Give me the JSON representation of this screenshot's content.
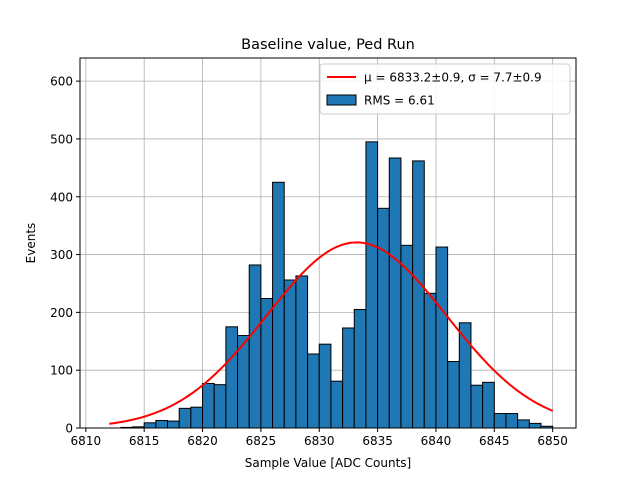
{
  "chart_data": {
    "type": "bar",
    "title": "Baseline value, Ped Run",
    "xlabel": "Sample Value [ADC Counts]",
    "ylabel": "Events",
    "xlim": [
      6809.5,
      6852.0
    ],
    "ylim": [
      0,
      640
    ],
    "grid": true,
    "x_ticks": [
      6810,
      6815,
      6820,
      6825,
      6830,
      6835,
      6840,
      6845,
      6850
    ],
    "y_ticks": [
      0,
      100,
      200,
      300,
      400,
      500,
      600
    ],
    "bin_width": 1,
    "bin_starts": [
      6813,
      6814,
      6815,
      6816,
      6817,
      6818,
      6819,
      6820,
      6821,
      6822,
      6823,
      6824,
      6825,
      6826,
      6827,
      6828,
      6829,
      6830,
      6831,
      6832,
      6833,
      6834,
      6835,
      6836,
      6837,
      6838,
      6839,
      6840,
      6841,
      6842,
      6843,
      6844,
      6845,
      6846,
      6847,
      6848,
      6849
    ],
    "counts": [
      1,
      2,
      9,
      13,
      12,
      34,
      36,
      77,
      75,
      175,
      160,
      282,
      224,
      425,
      256,
      263,
      128,
      145,
      81,
      173,
      205,
      495,
      380,
      467,
      316,
      462,
      233,
      313,
      115,
      182,
      74,
      79,
      25,
      25,
      14,
      8,
      3
    ],
    "histogram_color": "#1f77b4",
    "fit": {
      "type": "gaussian",
      "mu": 6833.2,
      "sigma": 7.7,
      "peak": 321,
      "x_range": [
        6812,
        6850
      ],
      "color": "#ff0000"
    },
    "legend": {
      "placement": "top-right",
      "entries": [
        {
          "label": "μ = 6833.2±0.9, σ = 7.7±0.9",
          "kind": "line",
          "color": "#ff0000"
        },
        {
          "label": "RMS = 6.61",
          "kind": "patch",
          "color": "#1f77b4"
        }
      ]
    }
  }
}
